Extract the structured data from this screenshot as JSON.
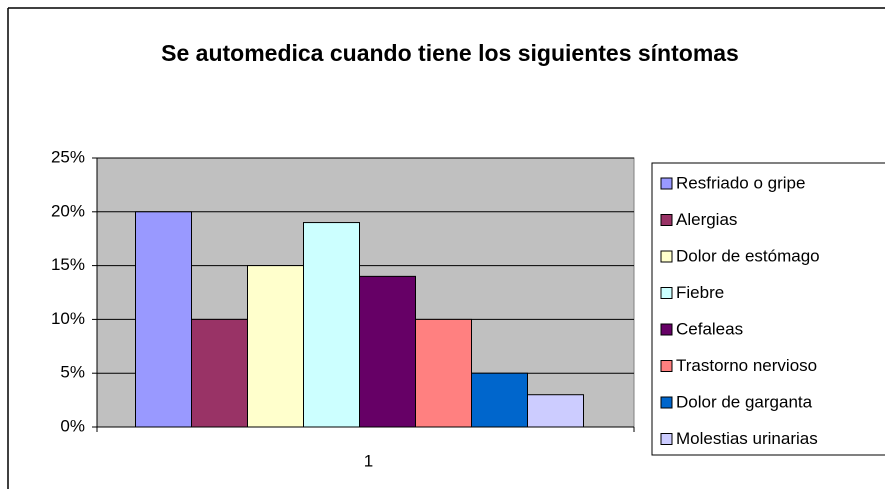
{
  "chart_data": {
    "type": "bar",
    "title": "Se automedica cuando tiene los siguientes síntomas",
    "categories": [
      "1"
    ],
    "series": [
      {
        "name": "Resfriado o gripe",
        "color": "#9999ff",
        "values": [
          20
        ]
      },
      {
        "name": "Alergias",
        "color": "#993366",
        "values": [
          10
        ]
      },
      {
        "name": "Dolor de estómago",
        "color": "#ffffcc",
        "values": [
          15
        ]
      },
      {
        "name": "Fiebre",
        "color": "#ccffff",
        "values": [
          19
        ]
      },
      {
        "name": "Cefaleas",
        "color": "#660066",
        "values": [
          14
        ]
      },
      {
        "name": "Trastorno nervioso",
        "color": "#ff8080",
        "values": [
          10
        ]
      },
      {
        "name": "Dolor de garganta",
        "color": "#0066cc",
        "values": [
          5
        ]
      },
      {
        "name": "Molestias urinarias",
        "color": "#ccccff",
        "values": [
          3
        ]
      }
    ],
    "ylim": [
      0,
      25
    ],
    "yticks": [
      {
        "value": 0,
        "label": "0%"
      },
      {
        "value": 5,
        "label": "5%"
      },
      {
        "value": 10,
        "label": "10%"
      },
      {
        "value": 15,
        "label": "15%"
      },
      {
        "value": 20,
        "label": "20%"
      },
      {
        "value": 25,
        "label": "25%"
      }
    ],
    "grid": true,
    "legend": "right",
    "plot_background": "#c0c0c0"
  }
}
